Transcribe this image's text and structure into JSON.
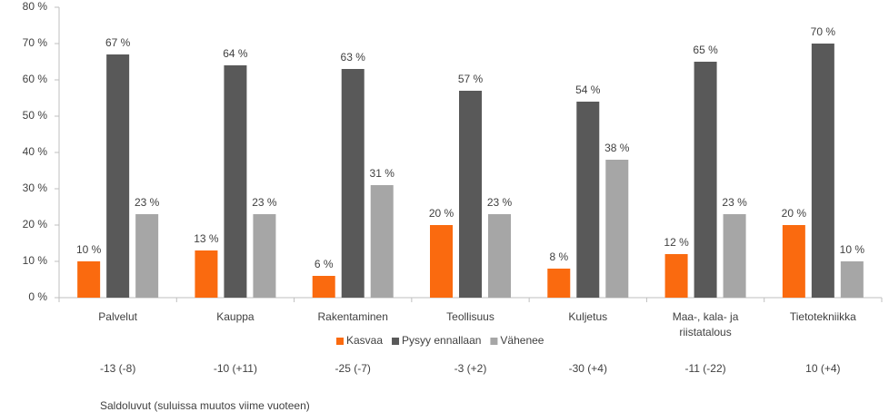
{
  "chart_data": {
    "type": "bar",
    "categories": [
      "Palvelut",
      "Kauppa",
      "Rakentaminen",
      "Teollisuus",
      "Kuljetus",
      "Maa-, kala- ja riistatalous",
      "Tietotekniikka"
    ],
    "series": [
      {
        "name": "Kasvaa",
        "color": "#fa6a0f",
        "values": [
          10,
          13,
          6,
          20,
          8,
          12,
          20
        ],
        "value_labels": [
          "10 %",
          "13 %",
          "6 %",
          "20 %",
          "8 %",
          "12 %",
          "20 %"
        ]
      },
      {
        "name": "Pysyy ennallaan",
        "color": "#595959",
        "values": [
          67,
          64,
          63,
          57,
          54,
          65,
          70
        ],
        "value_labels": [
          "67 %",
          "64 %",
          "63 %",
          "57 %",
          "54 %",
          "65 %",
          "70 %"
        ]
      },
      {
        "name": "Vähenee",
        "color": "#a6a6a6",
        "values": [
          23,
          23,
          31,
          23,
          38,
          23,
          10
        ],
        "value_labels": [
          "23 %",
          "23 %",
          "31 %",
          "23 %",
          "38 %",
          "23 %",
          "10 %"
        ]
      }
    ],
    "ylim": [
      0,
      80
    ],
    "yticks": [
      {
        "value": 0,
        "label": "0 %"
      },
      {
        "value": 10,
        "label": "10 %"
      },
      {
        "value": 20,
        "label": "20 %"
      },
      {
        "value": 30,
        "label": "30 %"
      },
      {
        "value": 40,
        "label": "40 %"
      },
      {
        "value": 50,
        "label": "50 %"
      },
      {
        "value": 60,
        "label": "60 %"
      },
      {
        "value": 70,
        "label": "70 %"
      },
      {
        "value": 80,
        "label": "80 %"
      }
    ],
    "legend": "bottom",
    "saldo": [
      "-13 (-8)",
      "-10 (+11)",
      "-25 (-7)",
      "-3 (+2)",
      "-30 (+4)",
      "-11 (-22)",
      "10 (+4)"
    ],
    "note": "Saldoluvut (suluissa muutos viime vuoteen)"
  }
}
